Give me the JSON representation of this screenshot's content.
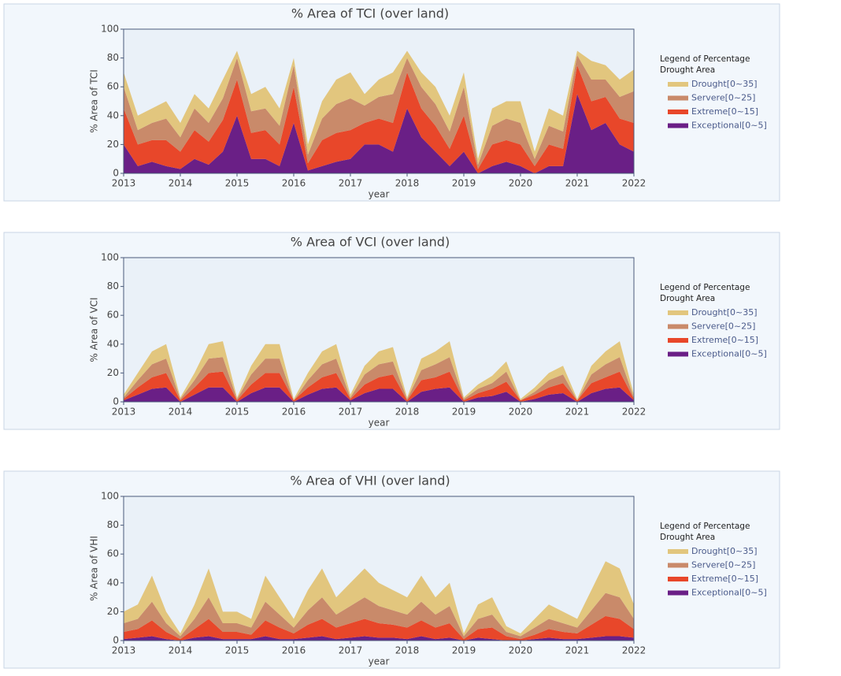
{
  "chart_data": [
    {
      "type": "stacked_area",
      "title": "% Area of TCI (over land)",
      "ylabel": "% Area of TCI",
      "xlabel": "year",
      "legend_title": [
        "Legend of Percentage",
        "Drought Area"
      ],
      "x": [
        2013,
        2013.25,
        2013.5,
        2013.75,
        2014,
        2014.25,
        2014.5,
        2014.75,
        2015,
        2015.25,
        2015.5,
        2015.75,
        2016,
        2016.25,
        2016.5,
        2016.75,
        2017,
        2017.25,
        2017.5,
        2017.75,
        2018,
        2018.25,
        2018.5,
        2018.75,
        2019,
        2019.25,
        2019.5,
        2019.75,
        2020,
        2020.25,
        2020.5,
        2020.75,
        2021,
        2021.25,
        2021.5,
        2021.75,
        2022
      ],
      "xlim": [
        2013,
        2022
      ],
      "xticks": [
        2013,
        2014,
        2015,
        2016,
        2017,
        2018,
        2019,
        2020,
        2021,
        2022
      ],
      "ylim": [
        0,
        100
      ],
      "yticks": [
        0,
        20,
        40,
        60,
        80,
        100
      ],
      "series": [
        {
          "name": "Drought[0~35]",
          "color": "#e2c67e",
          "values": [
            10,
            10,
            10,
            12,
            10,
            10,
            10,
            13,
            5,
            12,
            15,
            12,
            5,
            7,
            12,
            17,
            18,
            8,
            12,
            15,
            5,
            10,
            12,
            11,
            10,
            4,
            12,
            12,
            15,
            5,
            12,
            11,
            3,
            13,
            10,
            12,
            15
          ]
        },
        {
          "name": "Servere[0~25]",
          "color": "#c98a6a",
          "values": [
            15,
            10,
            12,
            15,
            10,
            15,
            13,
            15,
            15,
            15,
            15,
            13,
            15,
            6,
            15,
            20,
            22,
            12,
            15,
            20,
            10,
            15,
            15,
            12,
            20,
            3,
            13,
            15,
            15,
            5,
            13,
            12,
            7,
            15,
            12,
            15,
            22
          ]
        },
        {
          "name": "Extreme[0~15]",
          "color": "#e8472a",
          "values": [
            25,
            15,
            15,
            18,
            12,
            20,
            16,
            22,
            25,
            18,
            20,
            15,
            25,
            5,
            18,
            20,
            20,
            15,
            18,
            20,
            25,
            20,
            18,
            12,
            25,
            3,
            15,
            15,
            15,
            5,
            15,
            12,
            20,
            20,
            18,
            18,
            20
          ]
        },
        {
          "name": "Exceptional[0~5]",
          "color": "#6a1f86",
          "values": [
            20,
            5,
            8,
            5,
            3,
            10,
            6,
            15,
            40,
            10,
            10,
            5,
            35,
            2,
            5,
            8,
            10,
            20,
            20,
            15,
            45,
            25,
            15,
            5,
            15,
            0,
            5,
            8,
            5,
            0,
            5,
            5,
            55,
            30,
            35,
            20,
            15
          ]
        }
      ]
    },
    {
      "type": "stacked_area",
      "title": "% Area of VCI (over land)",
      "ylabel": "% Area of VCI",
      "xlabel": "year",
      "legend_title": [
        "Legend of Percentage",
        "Drought Area"
      ],
      "x": [
        2013,
        2013.25,
        2013.5,
        2013.75,
        2014,
        2014.25,
        2014.5,
        2014.75,
        2015,
        2015.25,
        2015.5,
        2015.75,
        2016,
        2016.25,
        2016.5,
        2016.75,
        2017,
        2017.25,
        2017.5,
        2017.75,
        2018,
        2018.25,
        2018.5,
        2018.75,
        2019,
        2019.25,
        2019.5,
        2019.75,
        2020,
        2020.25,
        2020.5,
        2020.75,
        2021,
        2021.25,
        2021.5,
        2021.75,
        2022
      ],
      "xlim": [
        2013,
        2022
      ],
      "xticks": [
        2013,
        2014,
        2015,
        2016,
        2017,
        2018,
        2019,
        2020,
        2021,
        2022
      ],
      "ylim": [
        0,
        100
      ],
      "yticks": [
        0,
        20,
        40,
        60,
        80,
        100
      ],
      "series": [
        {
          "name": "Drought[0~35]",
          "color": "#e2c67e",
          "values": [
            2,
            5,
            9,
            10,
            1,
            5,
            10,
            11,
            1,
            6,
            10,
            10,
            1,
            5,
            9,
            10,
            2,
            6,
            9,
            10,
            1,
            8,
            9,
            11,
            1,
            3,
            5,
            7,
            1,
            3,
            5,
            6,
            1,
            6,
            9,
            11,
            2
          ]
        },
        {
          "name": "Servere[0~25]",
          "color": "#c98a6a",
          "values": [
            1,
            5,
            9,
            10,
            1,
            5,
            10,
            10,
            1,
            7,
            10,
            10,
            0,
            5,
            9,
            10,
            1,
            7,
            9,
            9,
            1,
            7,
            9,
            10,
            1,
            3,
            4,
            7,
            0,
            2,
            5,
            6,
            0,
            6,
            9,
            10,
            1
          ]
        },
        {
          "name": "Extreme[0~15]",
          "color": "#e8472a",
          "values": [
            1,
            5,
            8,
            10,
            1,
            5,
            10,
            11,
            1,
            6,
            10,
            10,
            1,
            5,
            8,
            10,
            1,
            6,
            8,
            10,
            1,
            8,
            8,
            11,
            1,
            3,
            5,
            7,
            1,
            3,
            5,
            7,
            1,
            7,
            8,
            11,
            1
          ]
        },
        {
          "name": "Exceptional[0~5]",
          "color": "#6a1f86",
          "values": [
            1,
            5,
            9,
            10,
            0,
            5,
            10,
            10,
            0,
            6,
            10,
            10,
            0,
            5,
            9,
            10,
            1,
            6,
            9,
            9,
            0,
            7,
            9,
            10,
            0,
            3,
            4,
            7,
            0,
            2,
            5,
            6,
            0,
            6,
            9,
            10,
            1
          ]
        }
      ]
    },
    {
      "type": "stacked_area",
      "title": "% Area of VHI (over land)",
      "ylabel": "% Area of VHI",
      "xlabel": "year",
      "legend_title": [
        "Legend of Percentage",
        "Drought Area"
      ],
      "x": [
        2013,
        2013.25,
        2013.5,
        2013.75,
        2014,
        2014.25,
        2014.5,
        2014.75,
        2015,
        2015.25,
        2015.5,
        2015.75,
        2016,
        2016.25,
        2016.5,
        2016.75,
        2017,
        2017.25,
        2017.5,
        2017.75,
        2018,
        2018.25,
        2018.5,
        2018.75,
        2019,
        2019.25,
        2019.5,
        2019.75,
        2020,
        2020.25,
        2020.5,
        2020.75,
        2021,
        2021.25,
        2021.5,
        2021.75,
        2022
      ],
      "xlim": [
        2013,
        2022
      ],
      "xticks": [
        2013,
        2014,
        2015,
        2016,
        2017,
        2018,
        2019,
        2020,
        2021,
        2022
      ],
      "ylim": [
        0,
        100
      ],
      "yticks": [
        0,
        20,
        40,
        60,
        80,
        100
      ],
      "series": [
        {
          "name": "Drought[0~35]",
          "color": "#e2c67e",
          "values": [
            8,
            10,
            18,
            8,
            2,
            10,
            20,
            8,
            8,
            6,
            18,
            12,
            6,
            14,
            20,
            12,
            16,
            20,
            16,
            14,
            12,
            18,
            12,
            16,
            2,
            10,
            12,
            4,
            2,
            6,
            10,
            8,
            6,
            14,
            22,
            20,
            10
          ]
        },
        {
          "name": "Servere[0~25]",
          "color": "#c98a6a",
          "values": [
            6,
            7,
            13,
            6,
            2,
            7,
            15,
            6,
            6,
            5,
            13,
            9,
            4,
            10,
            15,
            9,
            12,
            15,
            12,
            10,
            9,
            13,
            9,
            12,
            2,
            7,
            9,
            3,
            2,
            5,
            7,
            6,
            4,
            10,
            16,
            15,
            7
          ]
        },
        {
          "name": "Extreme[0~15]",
          "color": "#e8472a",
          "values": [
            5,
            6,
            11,
            5,
            1,
            6,
            12,
            5,
            5,
            3,
            11,
            8,
            4,
            9,
            12,
            8,
            10,
            12,
            10,
            9,
            8,
            11,
            8,
            10,
            1,
            6,
            8,
            3,
            1,
            3,
            6,
            5,
            4,
            9,
            14,
            12,
            6
          ]
        },
        {
          "name": "Exceptional[0~5]",
          "color": "#6a1f86",
          "values": [
            1,
            2,
            3,
            1,
            0,
            2,
            3,
            1,
            1,
            1,
            3,
            1,
            1,
            2,
            3,
            1,
            2,
            3,
            2,
            2,
            1,
            3,
            1,
            2,
            0,
            2,
            1,
            0,
            0,
            1,
            2,
            1,
            1,
            2,
            3,
            3,
            2
          ]
        }
      ]
    }
  ]
}
